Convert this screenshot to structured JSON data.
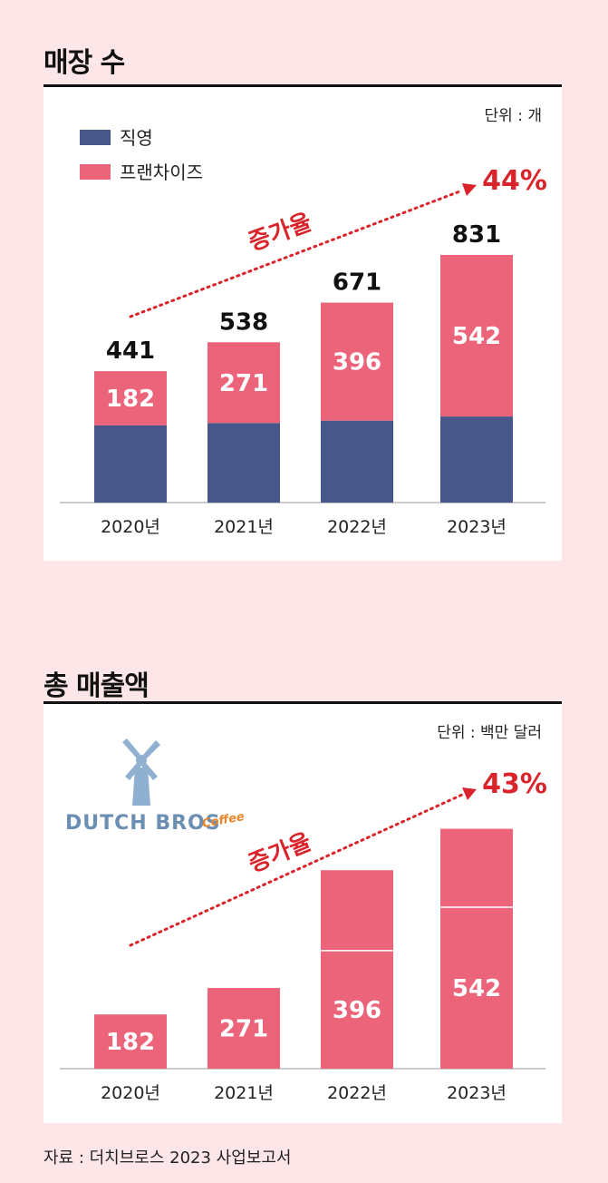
{
  "sections": [
    {
      "title": "매장 수",
      "unit": "단위 : 개"
    },
    {
      "title": "총 매출액",
      "unit": "단위 : 백만 달러"
    }
  ],
  "legend": [
    {
      "label": "직영",
      "color": "#47578a"
    },
    {
      "label": "프랜차이즈",
      "color": "#ec6479"
    }
  ],
  "logo": {
    "text": "DUTCH BROS",
    "sub": "Coffee"
  },
  "source": "자료 : 더치브로스 2023 사업보고서",
  "chart_data": [
    {
      "type": "bar",
      "stacked": true,
      "title": "매장 수",
      "unit": "단위 : 개",
      "categories": [
        "2020년",
        "2021년",
        "2022년",
        "2023년"
      ],
      "series": [
        {
          "name": "직영",
          "values": [
            259,
            267,
            275,
            289
          ],
          "color": "#47578a"
        },
        {
          "name": "프랜차이즈",
          "values": [
            182,
            271,
            396,
            542
          ],
          "color": "#ec6479"
        }
      ],
      "totals": [
        441,
        538,
        671,
        831
      ],
      "growth_label": "증가율",
      "growth": "44%",
      "legend_position": "top-left"
    },
    {
      "type": "bar",
      "title": "총 매출액",
      "unit": "단위 : 백만 달러",
      "categories": [
        "2020년",
        "2021년",
        "2022년",
        "2023년"
      ],
      "values": [
        182,
        271,
        396,
        542
      ],
      "top_segment_values": [
        null,
        null,
        270,
        263
      ],
      "color": "#ec6479",
      "growth_label": "증가율",
      "growth": "43%"
    }
  ]
}
